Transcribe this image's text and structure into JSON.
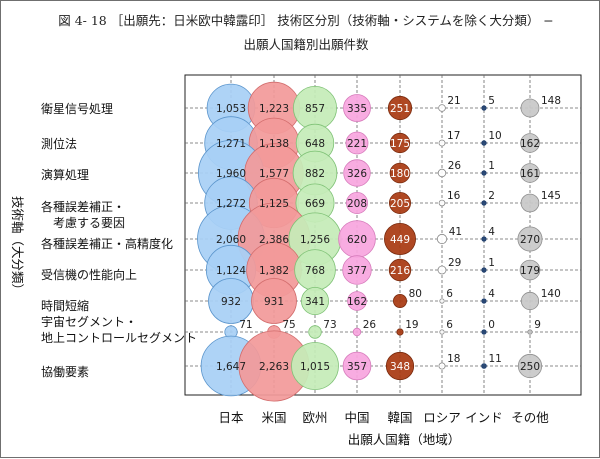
{
  "chart_data": {
    "type": "bubble",
    "title": "図 4- 18 ［出願先：日米欧中韓露印］ 技術区分別（技術軸・システムを除く大分類） −",
    "subtitle": "出願人国籍別出願件数",
    "ylabel": "技術軸（大分類）",
    "xlabel": "出願人国籍（地域）",
    "grid": true,
    "categories": [
      "日本",
      "米国",
      "欧州",
      "中国",
      "韓国",
      "ロシア",
      "インド",
      "その他"
    ],
    "rows": [
      {
        "label": [
          "衛星信号処理"
        ],
        "values": [
          1053,
          1223,
          857,
          335,
          251,
          21,
          5,
          148
        ]
      },
      {
        "label": [
          "測位法"
        ],
        "values": [
          1271,
          1138,
          648,
          221,
          175,
          17,
          10,
          162
        ]
      },
      {
        "label": [
          "演算処理"
        ],
        "values": [
          1960,
          1577,
          882,
          326,
          180,
          26,
          1,
          161
        ]
      },
      {
        "label": [
          "各種誤差補正・",
          "　考慮する要因"
        ],
        "values": [
          1272,
          1125,
          669,
          208,
          205,
          16,
          2,
          145
        ]
      },
      {
        "label": [
          "各種誤差補正・高精度化"
        ],
        "values": [
          2060,
          2386,
          1256,
          620,
          449,
          41,
          4,
          270
        ]
      },
      {
        "label": [
          "受信機の性能向上"
        ],
        "values": [
          1124,
          1382,
          768,
          377,
          216,
          29,
          1,
          179
        ]
      },
      {
        "label": [
          "時間短縮"
        ],
        "values": [
          932,
          931,
          341,
          162,
          80,
          6,
          4,
          140
        ]
      },
      {
        "label": [
          "宇宙セグメント・",
          "地上コントロールセグメント"
        ],
        "values": [
          71,
          75,
          73,
          26,
          19,
          6,
          0,
          9
        ]
      },
      {
        "label": [
          "協働要素"
        ],
        "values": [
          1647,
          2263,
          1015,
          357,
          348,
          18,
          11,
          250
        ]
      }
    ],
    "colors": {
      "fill": [
        "#a8d0f5",
        "#f29a9a",
        "#c5ecb8",
        "#f7a6df",
        "#a93a12",
        "#ffffff",
        "#1f3f6e",
        "#c8c8c8"
      ],
      "stroke": [
        "#5b95cc",
        "#d26c6c",
        "#7fc276",
        "#d77cbc",
        "#7a2a0d",
        "#8a8a8a",
        "#1f3f6e",
        "#8f8f8f"
      ],
      "text": [
        "#1f1f1f",
        "#1f1f1f",
        "#1f1f1f",
        "#1f1f1f",
        "#ffffff",
        "#1f1f1f",
        "#1f1f1f",
        "#1f1f1f"
      ]
    }
  }
}
